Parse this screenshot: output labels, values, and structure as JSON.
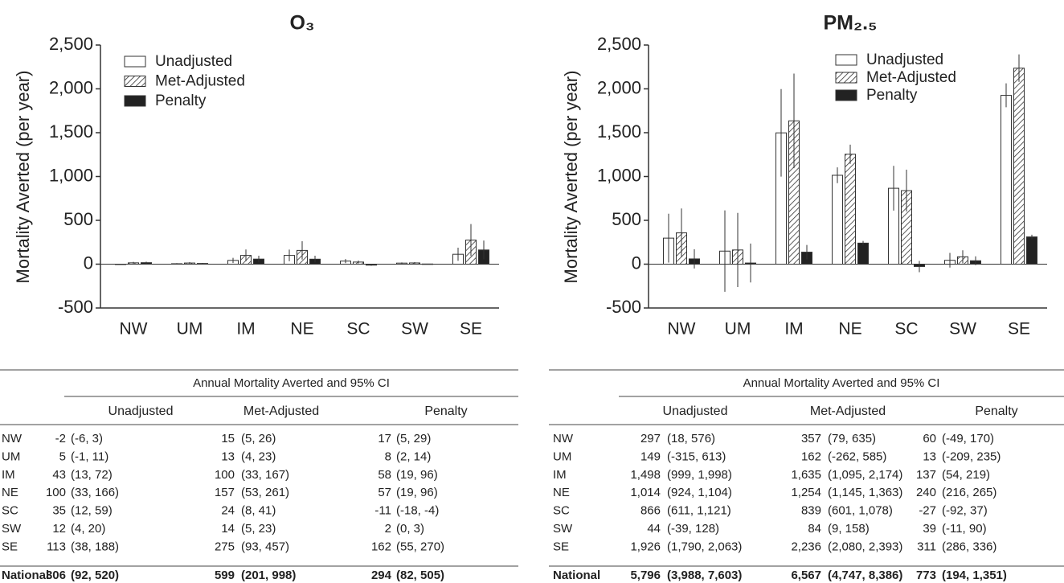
{
  "chart_data": [
    {
      "type": "bar",
      "title": "O₃",
      "y_label": "Mortality Averted (per year)",
      "categories": [
        "NW",
        "UM",
        "IM",
        "NE",
        "SC",
        "SW",
        "SE"
      ],
      "ylim": [
        -500,
        2500
      ],
      "yticks": [
        -500,
        0,
        500,
        {
          "value": 1000,
          "label": "1,000"
        },
        {
          "value": 1500,
          "label": "1,500"
        },
        {
          "value": 2000,
          "label": "2,000"
        },
        {
          "value": 2500,
          "label": "2,500"
        }
      ],
      "legend": "top-left",
      "series": [
        {
          "name": "Unadjusted",
          "color": "#ffffff",
          "values": [
            -2,
            5,
            43,
            100,
            35,
            12,
            113
          ],
          "ci_low": [
            -6,
            -1,
            13,
            33,
            12,
            4,
            38
          ],
          "ci_high": [
            3,
            11,
            72,
            166,
            59,
            20,
            188
          ]
        },
        {
          "name": "Met-Adjusted",
          "color": "#ffffff",
          "pattern": "hatch",
          "values": [
            15,
            13,
            100,
            157,
            24,
            14,
            275
          ],
          "ci_low": [
            5,
            4,
            33,
            53,
            8,
            5,
            93
          ],
          "ci_high": [
            26,
            23,
            167,
            261,
            41,
            23,
            457
          ]
        },
        {
          "name": "Penalty",
          "color": "#222222",
          "values": [
            17,
            8,
            58,
            57,
            -11,
            2,
            162
          ],
          "ci_low": [
            5,
            2,
            19,
            19,
            -18,
            0,
            55
          ],
          "ci_high": [
            29,
            14,
            96,
            96,
            -4,
            3,
            270
          ]
        }
      ]
    },
    {
      "type": "bar",
      "title": "PM₂.₅",
      "y_label": "Mortality Averted (per year)",
      "categories": [
        "NW",
        "UM",
        "IM",
        "NE",
        "SC",
        "SW",
        "SE"
      ],
      "ylim": [
        -500,
        2500
      ],
      "yticks": [
        -500,
        0,
        500,
        {
          "value": 1000,
          "label": "1,000"
        },
        {
          "value": 1500,
          "label": "1,500"
        },
        {
          "value": 2000,
          "label": "2,000"
        },
        {
          "value": 2500,
          "label": "2,500"
        }
      ],
      "legend": "top-right",
      "series": [
        {
          "name": "Unadjusted",
          "color": "#ffffff",
          "values": [
            297,
            149,
            1498,
            1014,
            866,
            44,
            1926
          ],
          "ci_low": [
            18,
            -315,
            999,
            924,
            611,
            -39,
            1790
          ],
          "ci_high": [
            576,
            613,
            1998,
            1104,
            1121,
            128,
            2063
          ]
        },
        {
          "name": "Met-Adjusted",
          "color": "#ffffff",
          "pattern": "hatch",
          "values": [
            357,
            162,
            1635,
            1254,
            839,
            84,
            2236
          ],
          "ci_low": [
            79,
            -262,
            1095,
            1145,
            601,
            9,
            2080
          ],
          "ci_high": [
            635,
            585,
            2174,
            1363,
            1078,
            158,
            2393
          ]
        },
        {
          "name": "Penalty",
          "color": "#222222",
          "values": [
            60,
            13,
            137,
            240,
            -27,
            39,
            311
          ],
          "ci_low": [
            -49,
            -209,
            54,
            216,
            -92,
            -11,
            286
          ],
          "ci_high": [
            170,
            235,
            219,
            265,
            37,
            90,
            336
          ]
        }
      ]
    }
  ],
  "tables": [
    {
      "header": "Annual Mortality Averted and 95% CI",
      "columns": [
        "Unadjusted",
        "Met-Adjusted",
        "Penalty"
      ],
      "rows": [
        [
          "NW",
          "-2",
          "(-6, 3)",
          "15",
          "(5, 26)",
          "17",
          "(5, 29)"
        ],
        [
          "UM",
          "5",
          "(-1, 11)",
          "13",
          "(4, 23)",
          "8",
          "(2, 14)"
        ],
        [
          "IM",
          "43",
          "(13, 72)",
          "100",
          "(33, 167)",
          "58",
          "(19, 96)"
        ],
        [
          "NE",
          "100",
          "(33, 166)",
          "157",
          "(53, 261)",
          "57",
          "(19, 96)"
        ],
        [
          "SC",
          "35",
          "(12, 59)",
          "24",
          "(8, 41)",
          "-11",
          "(-18, -4)"
        ],
        [
          "SW",
          "12",
          "(4, 20)",
          "14",
          "(5, 23)",
          "2",
          "(0, 3)"
        ],
        [
          "SE",
          "113",
          "(38, 188)",
          "275",
          "(93, 457)",
          "162",
          "(55, 270)"
        ],
        [
          "National",
          "306",
          "(92, 520)",
          "599",
          "(201, 998)",
          "294",
          "(82, 505)"
        ]
      ]
    },
    {
      "header": "Annual Mortality Averted and 95% CI",
      "columns": [
        "Unadjusted",
        "Met-Adjusted",
        "Penalty"
      ],
      "rows": [
        [
          "NW",
          "297",
          "(18, 576)",
          "357",
          "(79, 635)",
          "60",
          "(-49, 170)"
        ],
        [
          "UM",
          "149",
          "(-315, 613)",
          "162",
          "(-262, 585)",
          "13",
          "(-209, 235)"
        ],
        [
          "IM",
          "1,498",
          "(999, 1,998)",
          "1,635",
          "(1,095, 2,174)",
          "137",
          "(54, 219)"
        ],
        [
          "NE",
          "1,014",
          "(924, 1,104)",
          "1,254",
          "(1,145, 1,363)",
          "240",
          "(216, 265)"
        ],
        [
          "SC",
          "866",
          "(611, 1,121)",
          "839",
          "(601, 1,078)",
          "-27",
          "(-92, 37)"
        ],
        [
          "SW",
          "44",
          "(-39, 128)",
          "84",
          "(9, 158)",
          "39",
          "(-11, 90)"
        ],
        [
          "SE",
          "1,926",
          "(1,790, 2,063)",
          "2,236",
          "(2,080, 2,393)",
          "311",
          "(286, 336)"
        ],
        [
          "National",
          "5,796",
          "(3,988, 7,603)",
          "6,567",
          "(4,747, 8,386)",
          "773",
          "(194, 1,351)"
        ]
      ]
    }
  ]
}
